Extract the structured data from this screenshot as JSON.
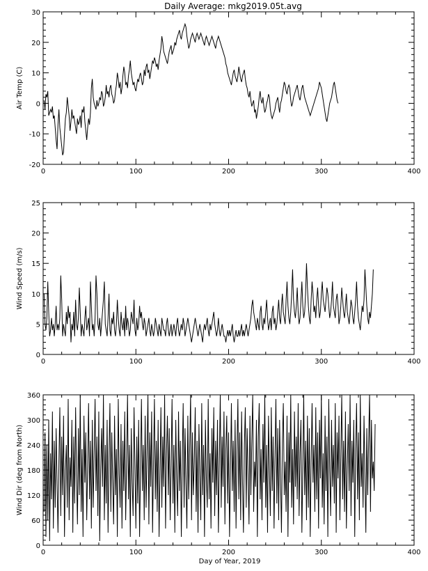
{
  "title": "Daily Average: mkg2019.05t.avg",
  "xlabel": "Day of Year, 2019",
  "colors": {
    "line": "#000000",
    "axis": "#000000",
    "background": "#ffffff"
  },
  "chart_data": [
    {
      "type": "line",
      "ylabel": "Air Temp (C)",
      "xlim": [
        0,
        400
      ],
      "ylim": [
        -20,
        30
      ],
      "xticks": [
        0,
        100,
        200,
        300,
        400
      ],
      "yticks": [
        -20,
        -10,
        0,
        10,
        20,
        30
      ],
      "grid": false,
      "x_start": 1,
      "x_step": 1,
      "values": [
        1,
        -2,
        3,
        2,
        4,
        -4,
        -3,
        -2,
        -3,
        -1,
        -5,
        -4,
        -8,
        -12,
        -15,
        -7,
        -2,
        -8,
        -11,
        -14,
        -17,
        -16,
        -10,
        -5,
        -3,
        2,
        -1,
        -4,
        -9,
        -6,
        -2,
        -5,
        -4,
        -6,
        -8,
        -10,
        -5,
        -7,
        -6,
        -4,
        -8,
        -2,
        -3,
        -1,
        -6,
        -9,
        -12,
        -8,
        -5,
        -7,
        -3,
        5,
        8,
        2,
        0,
        -1,
        -2,
        1,
        -1,
        0,
        2,
        1,
        4,
        3,
        -1,
        0,
        2,
        6,
        3,
        4,
        2,
        5,
        6,
        3,
        2,
        0,
        1,
        4,
        6,
        10,
        8,
        5,
        7,
        3,
        5,
        9,
        12,
        10,
        6,
        7,
        5,
        9,
        11,
        14,
        10,
        8,
        6,
        7,
        5,
        4,
        6,
        8,
        7,
        9,
        10,
        8,
        6,
        7,
        11,
        9,
        12,
        13,
        10,
        11,
        8,
        10,
        12,
        14,
        13,
        15,
        14,
        12,
        13,
        11,
        14,
        16,
        18,
        22,
        20,
        17,
        16,
        15,
        14,
        13,
        15,
        17,
        18,
        19,
        16,
        17,
        18,
        20,
        19,
        21,
        22,
        23,
        24,
        22,
        21,
        23,
        24,
        25,
        26,
        25,
        22,
        20,
        18,
        19,
        21,
        22,
        23,
        22,
        21,
        20,
        22,
        23,
        22,
        21,
        22,
        23,
        22,
        21,
        20,
        19,
        21,
        22,
        21,
        20,
        19,
        20,
        21,
        22,
        21,
        20,
        19,
        18,
        20,
        21,
        22,
        21,
        20,
        19,
        18,
        17,
        16,
        15,
        13,
        12,
        10,
        9,
        8,
        7,
        6,
        8,
        10,
        11,
        9,
        8,
        7,
        9,
        12,
        10,
        8,
        7,
        9,
        10,
        11,
        8,
        6,
        5,
        3,
        2,
        4,
        1,
        -1,
        0,
        1,
        -3,
        -2,
        -5,
        -3,
        -1,
        2,
        4,
        1,
        0,
        2,
        -1,
        -3,
        -2,
        0,
        1,
        3,
        2,
        -2,
        -4,
        -5,
        -4,
        -3,
        -2,
        0,
        1,
        2,
        -1,
        -3,
        0,
        1,
        3,
        5,
        7,
        6,
        4,
        3,
        5,
        6,
        5,
        1,
        -1,
        0,
        2,
        3,
        4,
        5,
        6,
        4,
        2,
        1,
        3,
        5,
        6,
        4,
        2,
        1,
        0,
        -1,
        -2,
        -3,
        -4,
        -3,
        -2,
        -1,
        0,
        1,
        2,
        3,
        4,
        5,
        7,
        6,
        5,
        3,
        1,
        -1,
        -3,
        -5,
        -6,
        -4,
        -2,
        0,
        1,
        2,
        4,
        6,
        7,
        5,
        3,
        1,
        0
      ],
      "visible_length": 364
    },
    {
      "type": "line",
      "ylabel": "Wind Speed (m/s)",
      "xlim": [
        0,
        400
      ],
      "ylim": [
        0,
        25
      ],
      "xticks": [
        0,
        100,
        200,
        300,
        400
      ],
      "yticks": [
        0,
        5,
        10,
        15,
        20,
        25
      ],
      "grid": false,
      "x_start": 1,
      "x_step": 1,
      "values": [
        10,
        5,
        4,
        6,
        12,
        7,
        3,
        4,
        6,
        4,
        5,
        3,
        5,
        8,
        4,
        5,
        4,
        6,
        13,
        9,
        3,
        5,
        4,
        3,
        7,
        5,
        8,
        6,
        7,
        2,
        5,
        4,
        7,
        3,
        9,
        5,
        4,
        6,
        11,
        7,
        3,
        5,
        4,
        3,
        6,
        8,
        4,
        5,
        6,
        3,
        12,
        8,
        4,
        5,
        3,
        6,
        13,
        10,
        5,
        4,
        6,
        3,
        5,
        7,
        9,
        12,
        5,
        4,
        3,
        6,
        10,
        4,
        3,
        6,
        5,
        7,
        4,
        3,
        5,
        9,
        6,
        4,
        3,
        7,
        5,
        4,
        6,
        3,
        8,
        4,
        6,
        5,
        3,
        4,
        7,
        6,
        5,
        9,
        4,
        3,
        6,
        4,
        5,
        8,
        6,
        7,
        5,
        4,
        6,
        5,
        3,
        4,
        5,
        6,
        4,
        3,
        5,
        4,
        3,
        4,
        6,
        5,
        4,
        3,
        5,
        4,
        3,
        6,
        5,
        4,
        4,
        3,
        5,
        6,
        4,
        3,
        4,
        5,
        3,
        4,
        5,
        4,
        3,
        5,
        6,
        4,
        3,
        4,
        5,
        4,
        6,
        5,
        3,
        4,
        5,
        6,
        5,
        4,
        3,
        2,
        3,
        4,
        5,
        6,
        5,
        4,
        3,
        4,
        5,
        4,
        3,
        2,
        4,
        5,
        4,
        5,
        6,
        4,
        3,
        5,
        4,
        5,
        6,
        7,
        5,
        4,
        3,
        4,
        6,
        4,
        3,
        4,
        5,
        4,
        3,
        3,
        2,
        3,
        4,
        3,
        4,
        3,
        4,
        5,
        3,
        2,
        3,
        4,
        3,
        3,
        4,
        3,
        4,
        5,
        3,
        4,
        3,
        4,
        5,
        4,
        3,
        4,
        5,
        6,
        8,
        9,
        7,
        6,
        5,
        4,
        6,
        5,
        4,
        7,
        8,
        5,
        4,
        6,
        5,
        7,
        9,
        6,
        4,
        5,
        6,
        4,
        7,
        8,
        5,
        6,
        4,
        5,
        7,
        9,
        6,
        5,
        8,
        10,
        7,
        6,
        5,
        9,
        12,
        8,
        6,
        5,
        7,
        10,
        14,
        9,
        7,
        6,
        8,
        11,
        7,
        5,
        6,
        9,
        12,
        8,
        6,
        7,
        10,
        15,
        11,
        8,
        6,
        5,
        9,
        12,
        10,
        7,
        8,
        6,
        9,
        11,
        8,
        6,
        7,
        10,
        12,
        9,
        8,
        7,
        9,
        11,
        10,
        8,
        6,
        7,
        9,
        12,
        8,
        7,
        6,
        9,
        10,
        8,
        5,
        6,
        8,
        11,
        9,
        7,
        6,
        8,
        10,
        7,
        6,
        5,
        7,
        9,
        8,
        6,
        5,
        7,
        9,
        12,
        8,
        6,
        5,
        4,
        6,
        8,
        7,
        9,
        14,
        11,
        8,
        6,
        5,
        7,
        6,
        8,
        10,
        14
      ],
      "visible_length": 364
    },
    {
      "type": "line",
      "ylabel": "Wind Dir (deg from North)",
      "xlim": [
        0,
        400
      ],
      "ylim": [
        0,
        360
      ],
      "xticks": [
        0,
        100,
        200,
        300,
        400
      ],
      "yticks": [
        0,
        60,
        120,
        180,
        240,
        300,
        360
      ],
      "grid": false,
      "x_start": 1,
      "x_step": 1,
      "values": [
        80,
        270,
        20,
        240,
        60,
        300,
        10,
        220,
        110,
        320,
        40,
        250,
        90,
        280,
        150,
        30,
        200,
        330,
        70,
        260,
        120,
        310,
        20,
        180,
        240,
        90,
        350,
        60,
        210,
        140,
        300,
        30,
        260,
        100,
        330,
        170,
        50,
        280,
        120,
        360,
        80,
        230,
        20,
        310,
        150,
        270,
        60,
        190,
        340,
        110,
        250,
        40,
        300,
        90,
        220,
        350,
        130,
        260,
        70,
        320,
        10,
        180,
        280,
        140,
        360,
        60,
        240,
        100,
        300,
        30,
        210,
        340,
        80,
        270,
        150,
        50,
        310,
        120,
        230,
        20,
        350,
        170,
        90,
        290,
        40,
        250,
        130,
        320,
        60,
        200,
        360,
        110,
        240,
        20,
        280,
        150,
        70,
        330,
        190,
        40,
        260,
        100,
        300,
        20,
        180,
        350,
        130,
        240,
        60,
        310,
        90,
        220,
        360,
        50,
        270,
        140,
        320,
        30,
        200,
        350,
        110,
        250,
        80,
        300,
        20,
        170,
        330,
        90,
        260,
        140,
        360,
        40,
        220,
        310,
        120,
        280,
        60,
        190,
        350,
        100,
        240,
        30,
        300,
        160,
        70,
        320,
        130,
        250,
        20,
        200,
        340,
        90,
        280,
        150,
        40,
        310,
        110,
        230,
        360,
        60,
        270,
        120,
        200,
        330,
        80,
        250,
        30,
        290,
        170,
        60,
        340,
        120,
        240,
        20,
        300,
        160,
        90,
        350,
        110,
        220,
        40,
        280,
        150,
        330,
        70,
        250,
        120,
        300,
        30,
        200,
        360,
        90,
        260,
        140,
        320,
        50,
        230,
        310,
        100,
        270,
        20,
        180,
        340,
        130,
        250,
        80,
        300,
        40,
        220,
        350,
        110,
        270,
        60,
        320,
        150,
        30,
        240,
        330,
        90,
        280,
        170,
        50,
        310,
        120,
        250,
        360,
        80,
        200,
        140,
        300,
        20,
        260,
        340,
        110,
        230,
        60,
        290,
        150,
        360,
        90,
        240,
        30,
        310,
        180,
        70,
        330,
        130,
        260,
        40,
        210,
        350,
        100,
        280,
        60,
        300,
        160,
        30,
        250,
        340,
        120,
        200,
        80,
        310,
        20,
        270,
        150,
        360,
        90,
        230,
        50,
        320,
        140,
        260,
        110,
        340,
        70,
        220,
        300,
        30,
        180,
        360,
        120,
        250,
        60,
        310,
        90,
        280,
        20,
        200,
        340,
        150,
        240,
        80,
        330,
        110,
        270,
        40,
        300,
        160,
        360,
        90,
        220,
        50,
        310,
        130,
        260,
        20,
        350,
        180,
        70,
        300,
        140,
        240,
        100,
        340,
        30,
        270,
        160,
        310,
        60,
        220,
        360,
        110,
        250,
        80,
        320,
        40,
        190,
        290,
        130,
        360,
        70,
        250,
        150,
        300,
        20,
        230,
        340,
        110,
        270,
        60,
        360,
        140,
        220,
        90,
        310,
        170,
        30,
        280,
        120,
        250,
        360,
        80,
        300,
        160,
        200,
        130,
        290
      ],
      "visible_length": 364
    }
  ]
}
